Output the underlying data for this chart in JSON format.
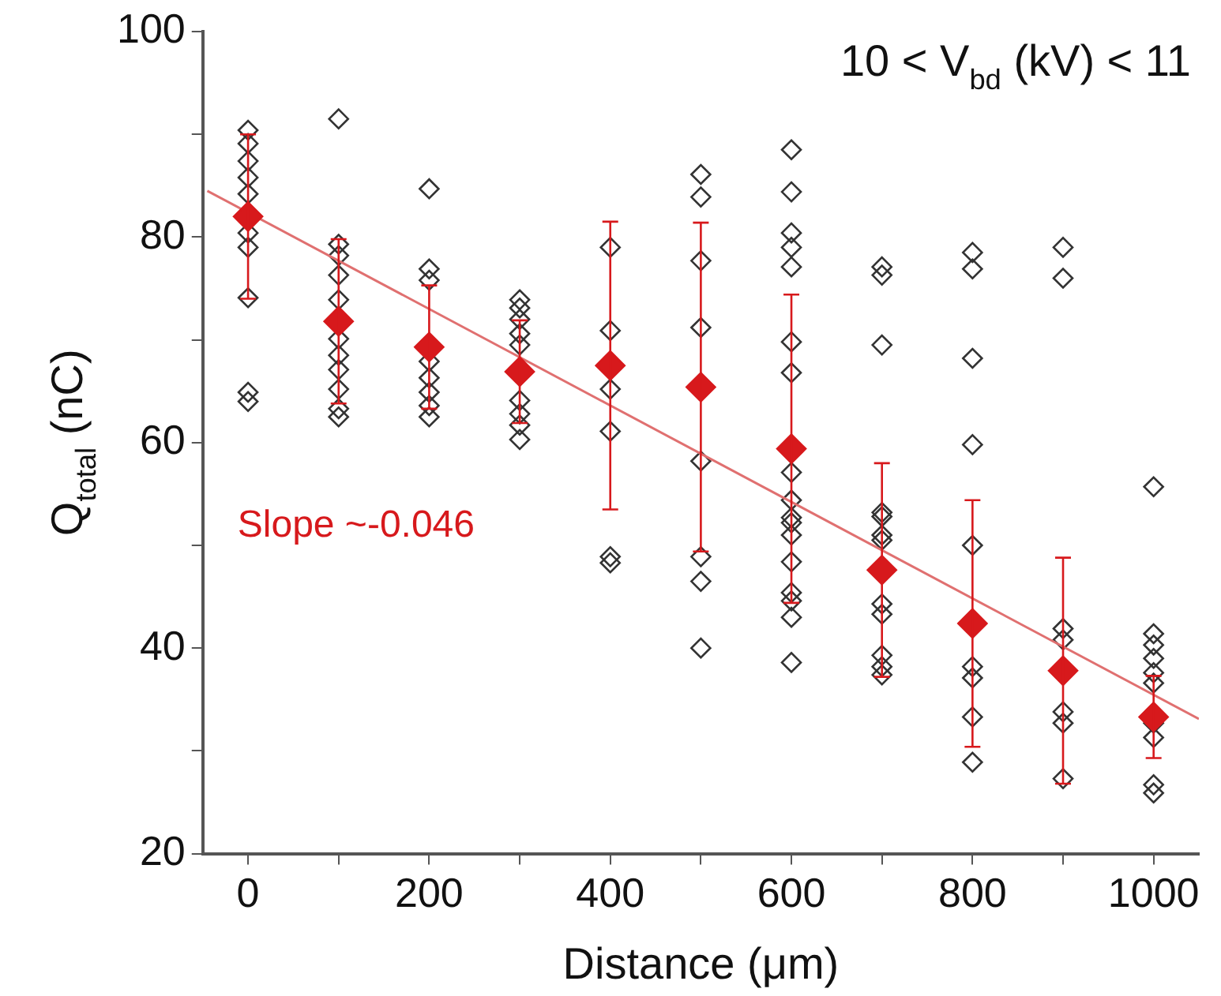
{
  "chart_data": {
    "type": "scatter",
    "xlabel": "Distance (μm)",
    "ylabel": "Q$_{total}$ (nC)",
    "annotations": [
      "10 < V$_{bd}$ (kV) < 11",
      "Slope ~-0.046"
    ],
    "xlim": [
      -50,
      1050
    ],
    "ylim": [
      20,
      100
    ],
    "xticks": [
      0,
      {
        "value": 100,
        "label": null
      },
      200,
      {
        "value": 300,
        "label": null
      },
      400,
      {
        "value": 500,
        "label": null
      },
      600,
      {
        "value": 700,
        "label": null
      },
      800,
      {
        "value": 900,
        "label": null
      },
      1000
    ],
    "yticks": [
      20,
      {
        "value": 30,
        "label": null
      },
      40,
      {
        "value": 50,
        "label": null
      },
      60,
      {
        "value": 70,
        "label": null
      },
      80,
      {
        "value": 90,
        "label": null
      },
      100
    ],
    "grid": false,
    "legend": false,
    "marker": "diamond",
    "series": [
      {
        "color": "#333333",
        "x": [
          0,
          0,
          0,
          0,
          0,
          0,
          0,
          0,
          0,
          0,
          100,
          100,
          100,
          100,
          100,
          100,
          100,
          100,
          100,
          100,
          100,
          200,
          200,
          200,
          200,
          200,
          200,
          200,
          200,
          300,
          300,
          300,
          300,
          300,
          300,
          300,
          300,
          300,
          400,
          400,
          400,
          400,
          400,
          400,
          500,
          500,
          500,
          500,
          500,
          500,
          500,
          500,
          600,
          600,
          600,
          600,
          600,
          600,
          600,
          600,
          600,
          600,
          600,
          600,
          600,
          600,
          600,
          600,
          600,
          700,
          700,
          700,
          700,
          700,
          700,
          700,
          700,
          700,
          700,
          700,
          700,
          800,
          800,
          800,
          800,
          800,
          800,
          800,
          800,
          800,
          900,
          900,
          900,
          900,
          900,
          900,
          900,
          1000,
          1000,
          1000,
          1000,
          1000,
          1000,
          1000,
          1000,
          1000,
          1000
        ],
        "values": [
          90.4,
          89.1,
          87.4,
          85.8,
          84.2,
          80.4,
          79.0,
          74.1,
          64.9,
          64.0,
          91.5,
          79.3,
          78.2,
          76.3,
          73.9,
          70.1,
          68.5,
          67.1,
          65.2,
          63.3,
          62.5,
          84.7,
          76.9,
          75.8,
          67.9,
          66.3,
          64.9,
          63.6,
          62.5,
          73.9,
          73.1,
          72.0,
          70.6,
          69.5,
          64.1,
          62.8,
          61.7,
          60.3,
          79.0,
          70.9,
          65.2,
          61.1,
          48.9,
          48.3,
          86.1,
          83.9,
          77.7,
          71.2,
          58.2,
          48.9,
          46.5,
          40.0,
          88.5,
          84.4,
          80.4,
          79.0,
          77.1,
          69.8,
          66.8,
          57.1,
          54.4,
          52.7,
          52.2,
          48.4,
          45.4,
          44.6,
          43.0,
          38.6,
          51.0,
          77.1,
          76.3,
          69.5,
          53.2,
          52.8,
          51.0,
          44.3,
          43.3,
          39.3,
          38.2,
          37.4,
          50.5,
          78.5,
          76.9,
          68.2,
          59.8,
          50.0,
          38.2,
          37.1,
          33.3,
          28.9,
          79.0,
          76.0,
          41.9,
          40.8,
          33.8,
          32.7,
          27.3,
          55.7,
          41.4,
          40.3,
          39.0,
          37.6,
          36.6,
          32.7,
          31.3,
          26.7,
          25.9
        ]
      },
      {
        "color": "#d7191c",
        "x": [
          0,
          100,
          200,
          300,
          400,
          500,
          600,
          700,
          800,
          900,
          1000
        ],
        "values": [
          82.0,
          71.8,
          69.3,
          66.9,
          67.5,
          65.4,
          59.4,
          47.6,
          42.4,
          37.8,
          33.3
        ],
        "errors": [
          8,
          8,
          6,
          5,
          14,
          16,
          15,
          10.4,
          12,
          11,
          4
        ]
      },
      {
        "type": "line",
        "marker": "none",
        "color": "#e07070",
        "x": [
          -45,
          1050
        ],
        "values": [
          84.5,
          33.1
        ]
      }
    ]
  }
}
